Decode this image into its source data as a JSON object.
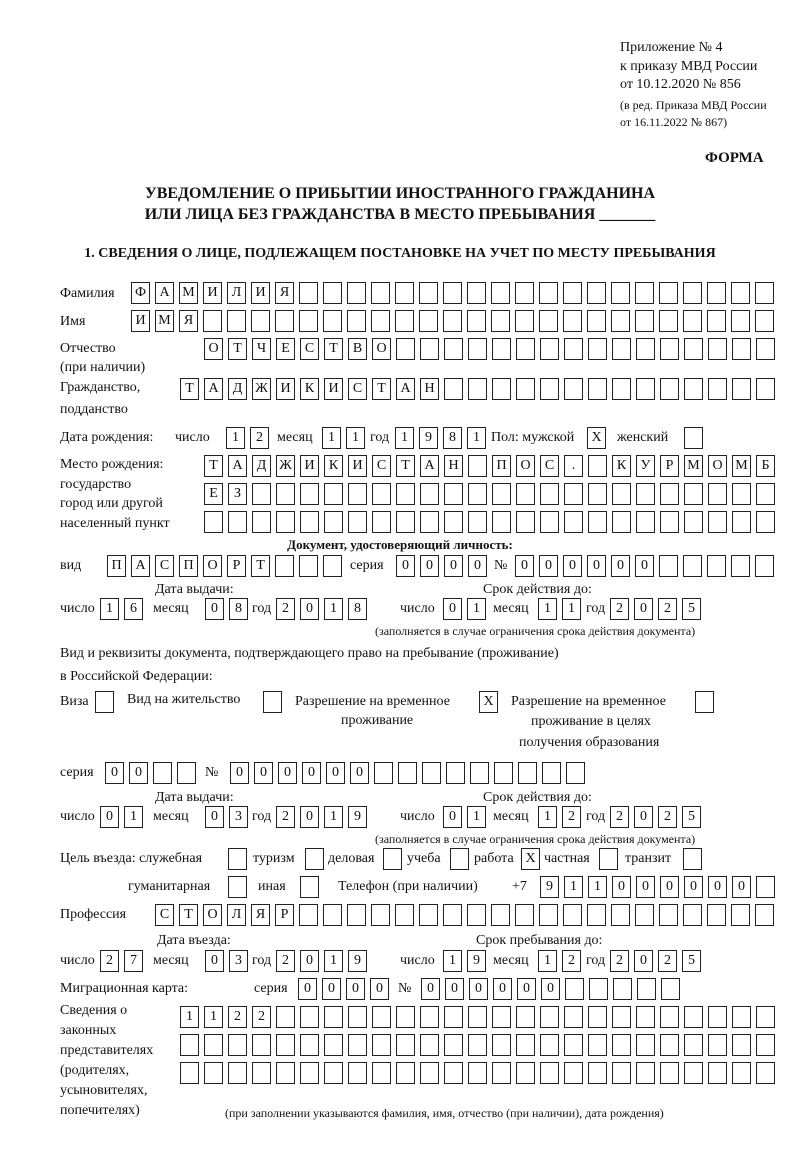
{
  "header": {
    "appendix": "Приложение № 4",
    "order": "к приказу МВД России",
    "order_date": "от 10.12.2020 № 856",
    "edition1": "(в ред. Приказа МВД России",
    "edition2": "от 16.11.2022 № 867)",
    "form_label": "ФОРМА"
  },
  "title": {
    "line1": "УВЕДОМЛЕНИЕ О ПРИБЫТИИ ИНОСТРАННОГО ГРАЖДАНИНА",
    "line2": "ИЛИ ЛИЦА БЕЗ ГРАЖДАНСТВА В МЕСТО ПРЕБЫВАНИЯ _______"
  },
  "section1": {
    "heading": "1. СВЕДЕНИЯ О ЛИЦЕ, ПОДЛЕЖАЩЕМ ПОСТАНОВКЕ НА УЧЕТ ПО МЕСТУ ПРЕБЫВАНИЯ"
  },
  "labels": {
    "surname": "Фамилия",
    "name": "Имя",
    "patronymic": "Отчество",
    "patronymic_note": "(при наличии)",
    "citizenship1": "Гражданство,",
    "citizenship2": "подданство",
    "birth_date": "Дата рождения:",
    "day": "число",
    "month": "месяц",
    "year": "год",
    "sex_male": "Пол: мужской",
    "sex_female": "женский",
    "birthplace1": "Место рождения:",
    "birthplace2": "государство",
    "birthplace3": "город или другой",
    "birthplace4": "населенный пункт",
    "id_doc": "Документ, удостоверяющий личность:",
    "kind": "вид",
    "series": "серия",
    "number": "№",
    "issue_date": "Дата выдачи:",
    "valid_until": "Срок действия до:",
    "validity_note": "(заполняется в случае ограничения срока действия документа)",
    "right_doc1": "Вид и реквизиты документа, подтверждающего право на пребывание (проживание)",
    "right_doc2": "в Российской Федерации:",
    "visa": "Виза",
    "residence": "Вид на жительство",
    "trp1": "Разрешение на временное",
    "trp2": "проживание",
    "trpe1": "Разрешение на временное",
    "trpe2": "проживание в целях",
    "trpe3": "получения образования",
    "purpose": "Цель въезда: служебная",
    "tourism": "туризм",
    "business": "деловая",
    "study": "учеба",
    "work": "работа",
    "private": "частная",
    "transit": "транзит",
    "humanitarian": "гуманитарная",
    "other": "иная",
    "phone": "Телефон (при наличии)",
    "phone_prefix": "+7",
    "profession": "Профессия",
    "entry_date": "Дата въезда:",
    "stay_until": "Срок пребывания до:",
    "migration_card": "Миграционная карта:",
    "reps": [
      "Сведения о",
      "законных",
      "представителях",
      "(родителях,",
      "усыновителях,",
      "попечителях)"
    ],
    "reps_note": "(при заполнении указываются фамилия, имя, отчество (при наличии), дата рождения)"
  },
  "values": {
    "surname": "ФАМИЛИЯ",
    "name": "ИМЯ",
    "patronymic": "ОТЧЕСТВО",
    "citizenship": "ТАДЖИКИСТАН",
    "birth": {
      "day": "12",
      "month": "11",
      "year": "1981"
    },
    "sex_male": "X",
    "sex_female": "",
    "birthplace": [
      "ТАДЖИКИСТАН ПОС. КУРМОМБ",
      "ЕЗ",
      ""
    ],
    "id_doc": {
      "kind": "ПАСПОРТ",
      "series": "0000",
      "number": "000000",
      "issue": {
        "day": "16",
        "month": "08",
        "year": "2018"
      },
      "valid": {
        "day": "01",
        "month": "11",
        "year": "2025"
      }
    },
    "stay_doc": {
      "visa": "",
      "residence": "",
      "trp": "X",
      "trpe": "",
      "series": "00",
      "number": "000000",
      "issue": {
        "day": "01",
        "month": "03",
        "year": "2019"
      },
      "valid": {
        "day": "01",
        "month": "12",
        "year": "2025"
      }
    },
    "purpose": {
      "service": "",
      "tourism": "",
      "business": "",
      "study": "",
      "work": "X",
      "private": "",
      "transit": "",
      "humanitarian": "",
      "other": ""
    },
    "phone": "911000000",
    "profession": "СТОЛЯР",
    "entry": {
      "day": "27",
      "month": "03",
      "year": "2019"
    },
    "stay_until": {
      "day": "19",
      "month": "12",
      "year": "2025"
    },
    "migration_card": {
      "series": "0000",
      "number": "000000"
    },
    "reps": [
      "1122",
      "",
      ""
    ]
  }
}
